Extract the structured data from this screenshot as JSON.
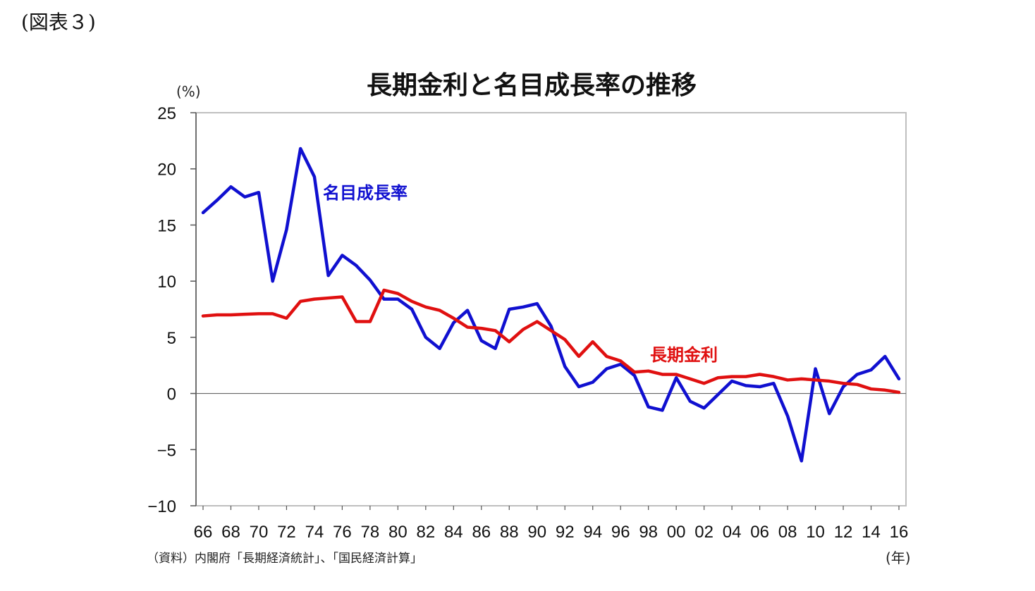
{
  "figure_label": "(図表３)",
  "chart_data": {
    "type": "line",
    "title": "長期金利と名目成長率の推移",
    "ylabel": "(%)",
    "xlabel": "(年)",
    "source": "（資料）内閣府「長期経済統計」、「国民経済計算」",
    "ylim": [
      -10,
      25
    ],
    "yticks": [
      25,
      20,
      15,
      10,
      5,
      0,
      -5,
      -10
    ],
    "ytick_labels": [
      "25",
      "20",
      "15",
      "10",
      "5",
      "0",
      "−5",
      "−10"
    ],
    "xlim": [
      1966,
      2016
    ],
    "xticks": [
      1966,
      1968,
      1970,
      1972,
      1974,
      1976,
      1978,
      1980,
      1982,
      1984,
      1986,
      1988,
      1990,
      1992,
      1994,
      1996,
      1998,
      2000,
      2002,
      2004,
      2006,
      2008,
      2010,
      2012,
      2014,
      2016
    ],
    "xtick_labels": [
      "66",
      "68",
      "70",
      "72",
      "74",
      "76",
      "78",
      "80",
      "82",
      "84",
      "86",
      "88",
      "90",
      "92",
      "94",
      "96",
      "98",
      "00",
      "02",
      "04",
      "06",
      "08",
      "10",
      "12",
      "14",
      "16"
    ],
    "grid": false,
    "x": [
      1966,
      1967,
      1968,
      1969,
      1970,
      1971,
      1972,
      1973,
      1974,
      1975,
      1976,
      1977,
      1978,
      1979,
      1980,
      1981,
      1982,
      1983,
      1984,
      1985,
      1986,
      1987,
      1988,
      1989,
      1990,
      1991,
      1992,
      1993,
      1994,
      1995,
      1996,
      1997,
      1998,
      1999,
      2000,
      2001,
      2002,
      2003,
      2004,
      2005,
      2006,
      2007,
      2008,
      2009,
      2010,
      2011,
      2012,
      2013,
      2014,
      2015,
      2016
    ],
    "series": [
      {
        "name": "名目成長率",
        "color": "#1010d0",
        "values": [
          16.1,
          17.2,
          18.4,
          17.5,
          17.9,
          10.0,
          14.6,
          21.8,
          19.3,
          10.5,
          12.3,
          11.4,
          10.1,
          8.4,
          8.4,
          7.5,
          5.0,
          4.0,
          6.3,
          7.4,
          4.7,
          4.0,
          7.5,
          7.7,
          8.0,
          6.0,
          2.4,
          0.6,
          1.0,
          2.2,
          2.6,
          1.6,
          -1.2,
          -1.5,
          1.4,
          -0.7,
          -1.3,
          -0.1,
          1.1,
          0.7,
          0.6,
          0.9,
          -2.0,
          -6.0,
          2.2,
          -1.8,
          0.6,
          1.7,
          2.1,
          3.3,
          1.3
        ]
      },
      {
        "name": "長期金利",
        "color": "#e01010",
        "values": [
          6.9,
          7.0,
          7.0,
          7.05,
          7.1,
          7.1,
          6.7,
          8.2,
          8.4,
          8.5,
          8.6,
          6.4,
          6.4,
          9.2,
          8.9,
          8.2,
          7.7,
          7.4,
          6.7,
          5.9,
          5.8,
          5.6,
          4.6,
          5.7,
          6.4,
          5.6,
          4.8,
          3.3,
          4.6,
          3.3,
          2.9,
          1.9,
          2.0,
          1.7,
          1.7,
          1.3,
          0.9,
          1.4,
          1.5,
          1.5,
          1.7,
          1.5,
          1.2,
          1.3,
          1.2,
          1.1,
          0.9,
          0.8,
          0.4,
          0.3,
          0.1
        ]
      }
    ]
  }
}
